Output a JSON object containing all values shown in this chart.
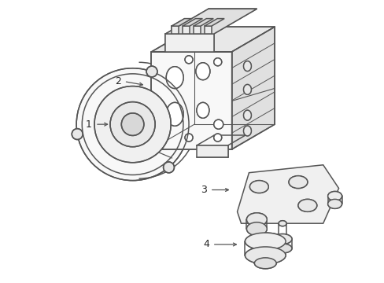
{
  "background_color": "#ffffff",
  "line_color": "#555555",
  "line_width": 1.1,
  "label_color": "#222222",
  "callout_fontsize": 9,
  "figsize": [
    4.89,
    3.6
  ],
  "dpi": 100
}
